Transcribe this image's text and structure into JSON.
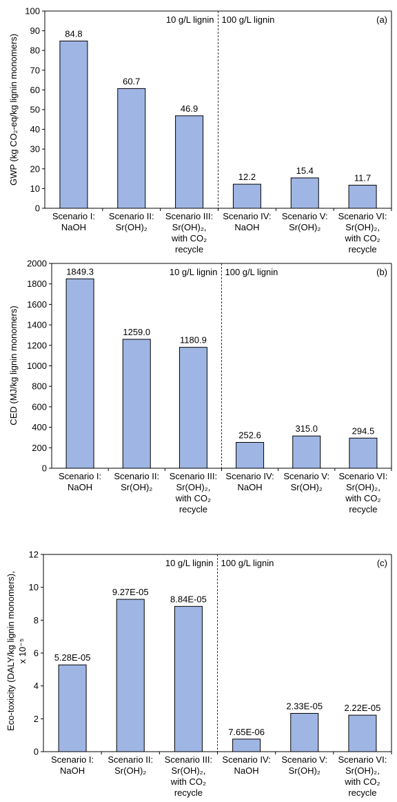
{
  "chart_data": [
    {
      "type": "bar",
      "panel_label": "(a)",
      "ylabel": "GWP (kg CO₂-eq/kg lignin monomers)",
      "ylim": [
        0,
        100
      ],
      "ytick_step": 10,
      "yticks": [
        "0",
        "10",
        "20",
        "30",
        "40",
        "50",
        "60",
        "70",
        "80",
        "90",
        "100"
      ],
      "categories": [
        [
          "Scenario I:",
          "NaOH"
        ],
        [
          "Scenario II:",
          "Sr(OH)₂"
        ],
        [
          "Scenario III:",
          "Sr(OH)₂,",
          "with CO₂",
          "recycle"
        ],
        [
          "Scenario IV:",
          "NaOH"
        ],
        [
          "Scenario V:",
          "Sr(OH)₂"
        ],
        [
          "Scenario VI:",
          "Sr(OH)₂,",
          "with CO₂",
          "recycle"
        ]
      ],
      "values": [
        84.8,
        60.7,
        46.9,
        12.2,
        15.4,
        11.7
      ],
      "value_labels": [
        "84.8",
        "60.7",
        "46.9",
        "12.2",
        "15.4",
        "11.7"
      ],
      "annotations": [
        "10 g/L lignin",
        "100 g/L lignin"
      ],
      "grid": false
    },
    {
      "type": "bar",
      "panel_label": "(b)",
      "ylabel": "CED (MJ/kg lignin monomers)",
      "ylim": [
        0,
        2000
      ],
      "ytick_step": 200,
      "yticks": [
        "0",
        "200",
        "400",
        "600",
        "800",
        "1000",
        "1200",
        "1400",
        "1600",
        "1800",
        "2000"
      ],
      "categories": [
        [
          "Scenario I:",
          "NaOH"
        ],
        [
          "Scenario II:",
          "Sr(OH)₂"
        ],
        [
          "Scenario III:",
          "Sr(OH)₂,",
          "with CO₂",
          "recycle"
        ],
        [
          "Scenario IV:",
          "NaOH"
        ],
        [
          "Scenario V:",
          "Sr(OH)₂"
        ],
        [
          "Scenario VI:",
          "Sr(OH)₂,",
          "with CO₂",
          "recycle"
        ]
      ],
      "values": [
        1849.3,
        1259.0,
        1180.9,
        252.6,
        315.0,
        294.5
      ],
      "value_labels": [
        "1849.3",
        "1259.0",
        "1180.9",
        "252.6",
        "315.0",
        "294.5"
      ],
      "annotations": [
        "10 g/L lignin",
        "100 g/L lignin"
      ],
      "grid": false
    },
    {
      "type": "bar",
      "panel_label": "(c)",
      "ylabel_lines": [
        "Eco-toxicity (DALY/kg lignin monomers),",
        "x 10⁻⁵"
      ],
      "ylim": [
        0,
        12
      ],
      "ytick_step": 2,
      "yticks": [
        "0",
        "2",
        "4",
        "6",
        "8",
        "10",
        "12"
      ],
      "categories": [
        [
          "Scenario I:",
          "NaOH"
        ],
        [
          "Scenario II:",
          "Sr(OH)₂"
        ],
        [
          "Scenario III:",
          "Sr(OH)₂,",
          "with CO₂",
          "recycle"
        ],
        [
          "Scenario IV:",
          "NaOH"
        ],
        [
          "Scenario V:",
          "Sr(OH)₂"
        ],
        [
          "Scenario VI:",
          "Sr(OH)₂,",
          "with CO₂",
          "recycle"
        ]
      ],
      "values": [
        5.28,
        9.27,
        8.84,
        0.765,
        2.33,
        2.22
      ],
      "value_labels": [
        "5.28E-05",
        "9.27E-05",
        "8.84E-05",
        "7.65E-06",
        "2.33E-05",
        "2.22E-05"
      ],
      "annotations": [
        "10 g/L lignin",
        "100 g/L lignin"
      ],
      "grid": false
    }
  ]
}
